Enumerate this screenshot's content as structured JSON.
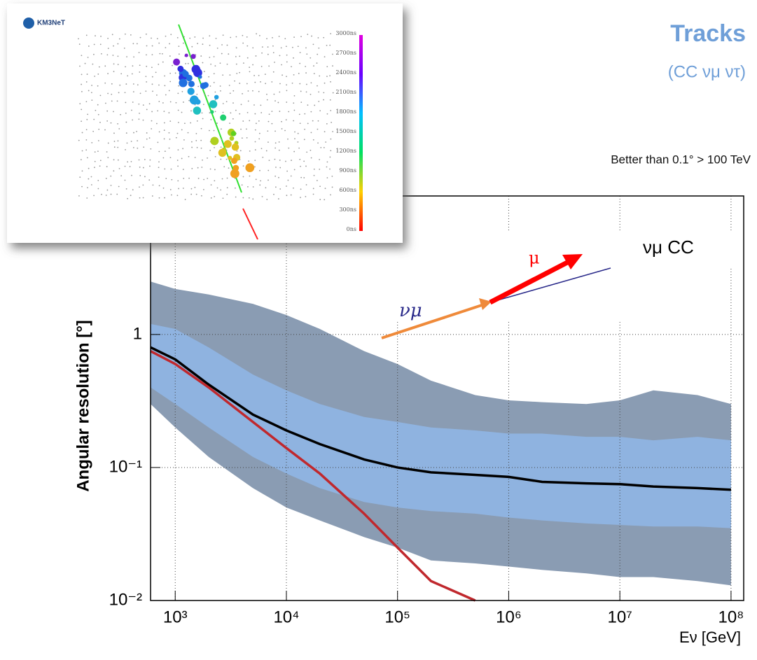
{
  "header": {
    "title": "Tracks",
    "subtitle": "(CC νμ ντ)",
    "note": "Better than 0.1° > 100 TeV"
  },
  "inset": {
    "logo": "KM3NeT",
    "scale_labels": [
      "3000ns",
      "2700ns",
      "2400ns",
      "2100ns",
      "1800ns",
      "1500ns",
      "1200ns",
      "900ns",
      "600ns",
      "300ns",
      "0ns"
    ]
  },
  "chart_data": {
    "type": "line",
    "xlog": true,
    "ylog": true,
    "grid": true,
    "x_label": "Eν [GeV]",
    "y_label": "Angular resolution [°]",
    "annotation": "νμ CC",
    "diagram": {
      "neutrino": "νμ",
      "muon": "μ"
    },
    "xlim": [
      600,
      130000000
    ],
    "ylim": [
      0.01,
      11
    ],
    "xticks": [
      {
        "value": 1000,
        "label": "10³"
      },
      {
        "value": 10000,
        "label": "10⁴"
      },
      {
        "value": 100000,
        "label": "10⁵"
      },
      {
        "value": 1000000,
        "label": "10⁶"
      },
      {
        "value": 10000000,
        "label": "10⁷"
      },
      {
        "value": 100000000,
        "label": "10⁸"
      }
    ],
    "yticks": [
      {
        "value": 0.01,
        "label": "10⁻²"
      },
      {
        "value": 0.1,
        "label": "10⁻¹"
      },
      1
    ],
    "x": [
      600,
      1000,
      2000,
      5000,
      10000,
      20000,
      50000,
      100000,
      200000,
      500000,
      1000000,
      2000000,
      5000000,
      10000000,
      20000000,
      50000000,
      100000000
    ],
    "bands": [
      {
        "color": "#8a9cb3",
        "upper": [
          2.5,
          2.2,
          2.0,
          1.7,
          1.4,
          1.1,
          0.75,
          0.6,
          0.45,
          0.35,
          0.32,
          0.31,
          0.3,
          0.32,
          0.38,
          0.35,
          0.3
        ],
        "lower": [
          0.3,
          0.2,
          0.12,
          0.07,
          0.05,
          0.04,
          0.03,
          0.025,
          0.02,
          0.019,
          0.018,
          0.017,
          0.016,
          0.015,
          0.015,
          0.014,
          0.013
        ]
      },
      {
        "color": "#8fb3e0",
        "upper": [
          1.2,
          1.1,
          0.8,
          0.5,
          0.38,
          0.3,
          0.24,
          0.22,
          0.2,
          0.19,
          0.18,
          0.18,
          0.17,
          0.17,
          0.16,
          0.17,
          0.16
        ],
        "lower": [
          0.4,
          0.3,
          0.2,
          0.12,
          0.09,
          0.07,
          0.055,
          0.05,
          0.047,
          0.045,
          0.042,
          0.04,
          0.038,
          0.037,
          0.036,
          0.036,
          0.035
        ]
      }
    ],
    "series": [
      {
        "color": "#000000",
        "values": [
          0.8,
          0.65,
          0.42,
          0.25,
          0.19,
          0.15,
          0.115,
          0.1,
          0.092,
          0.088,
          0.085,
          0.078,
          0.076,
          0.075,
          0.072,
          0.07,
          0.068
        ]
      },
      {
        "color": "#c0282d",
        "values": [
          0.75,
          0.6,
          0.4,
          0.22,
          0.14,
          0.09,
          0.045,
          0.025,
          0.014,
          0.01,
          null,
          null,
          null,
          null,
          null,
          null,
          null
        ]
      }
    ]
  }
}
